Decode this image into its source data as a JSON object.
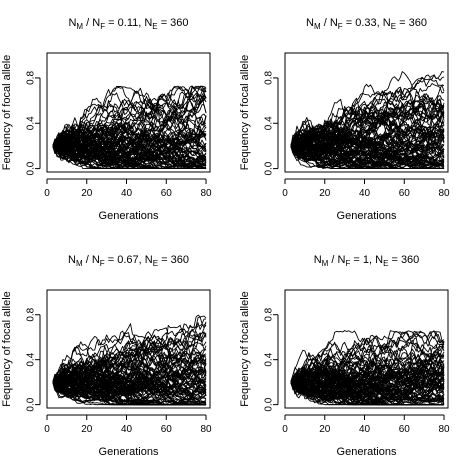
{
  "figure": {
    "chart_data": [
      {
        "type": "line",
        "title_parts": [
          "N",
          "M",
          " / N",
          "F",
          " = 0.11, N",
          "E",
          " = 360"
        ],
        "xlabel": "Generations",
        "ylabel": "Fequency of focal allele",
        "xlim": [
          0,
          82
        ],
        "ylim": [
          -0.03,
          1.02
        ],
        "xticks": [
          0,
          20,
          40,
          60,
          80
        ],
        "yticks": [
          0.0,
          0.4,
          0.8
        ],
        "ytick_labels": [
          "0.0",
          "0.4",
          "0.8"
        ],
        "generations": [
          3,
          80
        ],
        "start_frequency": 0.2,
        "n_replicates": 100,
        "max_frequency_at_end": 0.73,
        "line_color": "#000000"
      },
      {
        "type": "line",
        "title_parts": [
          "N",
          "M",
          " / N",
          "F",
          " = 0.33, N",
          "E",
          " = 360"
        ],
        "xlabel": "Generations",
        "ylabel": "Fequency of focal allele",
        "xlim": [
          0,
          82
        ],
        "ylim": [
          -0.03,
          1.02
        ],
        "xticks": [
          0,
          20,
          40,
          60,
          80
        ],
        "yticks": [
          0.0,
          0.4,
          0.8
        ],
        "ytick_labels": [
          "0.0",
          "0.4",
          "0.8"
        ],
        "generations": [
          3,
          80
        ],
        "start_frequency": 0.2,
        "n_replicates": 100,
        "max_frequency_at_end": 0.86,
        "line_color": "#000000"
      },
      {
        "type": "line",
        "title_parts": [
          "N",
          "M",
          " / N",
          "F",
          " = 0.67, N",
          "E",
          " = 360"
        ],
        "xlabel": "Generations",
        "ylabel": "Fequency of focal allele",
        "xlim": [
          0,
          82
        ],
        "ylim": [
          -0.03,
          1.02
        ],
        "xticks": [
          0,
          20,
          40,
          60,
          80
        ],
        "yticks": [
          0.0,
          0.4,
          0.8
        ],
        "ytick_labels": [
          "0.0",
          "0.4",
          "0.8"
        ],
        "generations": [
          3,
          80
        ],
        "start_frequency": 0.2,
        "n_replicates": 100,
        "max_frequency_at_end": 0.8,
        "line_color": "#000000"
      },
      {
        "type": "line",
        "title_parts": [
          "N",
          "M",
          " / N",
          "F",
          " = 1, N",
          "E",
          " = 360"
        ],
        "xlabel": "Generations",
        "ylabel": "Fequency of focal allele",
        "xlim": [
          0,
          82
        ],
        "ylim": [
          -0.03,
          1.02
        ],
        "xticks": [
          0,
          20,
          40,
          60,
          80
        ],
        "yticks": [
          0.0,
          0.4,
          0.8
        ],
        "ytick_labels": [
          "0.0",
          "0.4",
          "0.8"
        ],
        "generations": [
          3,
          80
        ],
        "start_frequency": 0.2,
        "n_replicates": 100,
        "max_frequency_at_end": 0.66,
        "line_color": "#000000"
      }
    ]
  }
}
